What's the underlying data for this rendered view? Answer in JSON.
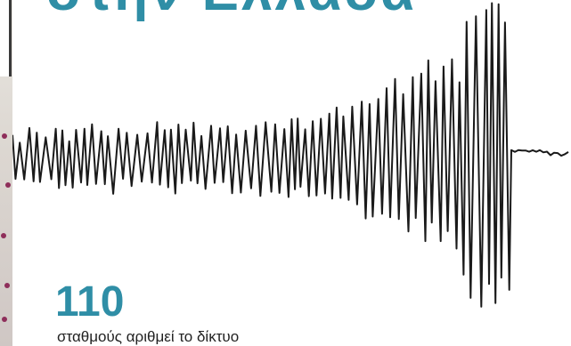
{
  "headline": "στην Ελλάδα",
  "stat": {
    "number": "110",
    "caption": "σταθμούς αριθμεί το δίκτυο"
  },
  "colors": {
    "accent": "#2f8ea6",
    "trace": "#1a1a1a",
    "caption": "#222222"
  },
  "icons": [
    "seismogram-trace"
  ]
}
